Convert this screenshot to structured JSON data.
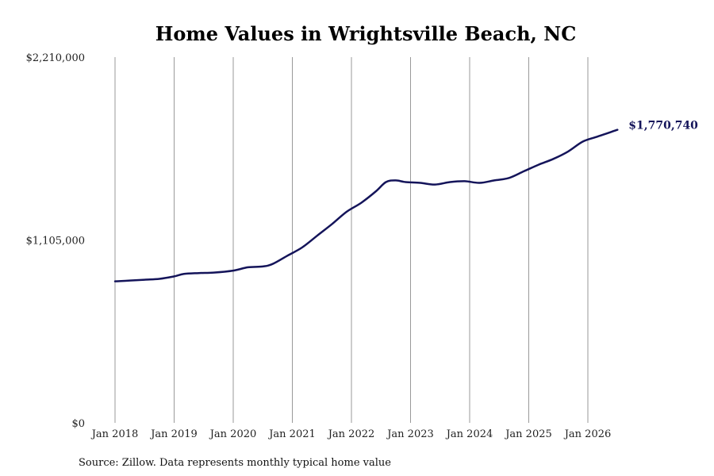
{
  "chart_data": {
    "type": "line",
    "title": "Home Values in Wrightsville Beach, NC",
    "source": "Source: Zillow. Data represents monthly typical home value",
    "x_start": "2018-01",
    "x_end": "2026-07",
    "xticks": [
      "Jan 2018",
      "Jan 2019",
      "Jan 2020",
      "Jan 2021",
      "Jan 2022",
      "Jan 2023",
      "Jan 2024",
      "Jan 2025",
      "Jan 2026"
    ],
    "yticks": [
      "$0",
      "$1,105,000",
      "$2,210,000"
    ],
    "ylim": [
      0,
      2210000
    ],
    "grid": "vertical",
    "line_color": "#14145a",
    "end_label": "$1,770,740",
    "series": [
      {
        "points": [
          [
            "2018-01",
            855000
          ],
          [
            "2018-04",
            860000
          ],
          [
            "2018-07",
            865000
          ],
          [
            "2018-10",
            870000
          ],
          [
            "2019-01",
            885000
          ],
          [
            "2019-03",
            900000
          ],
          [
            "2019-06",
            905000
          ],
          [
            "2019-09",
            908000
          ],
          [
            "2020-01",
            920000
          ],
          [
            "2020-04",
            940000
          ],
          [
            "2020-07",
            945000
          ],
          [
            "2020-09",
            960000
          ],
          [
            "2020-12",
            1010000
          ],
          [
            "2021-03",
            1060000
          ],
          [
            "2021-06",
            1130000
          ],
          [
            "2021-09",
            1200000
          ],
          [
            "2021-12",
            1275000
          ],
          [
            "2022-03",
            1330000
          ],
          [
            "2022-06",
            1400000
          ],
          [
            "2022-08",
            1455000
          ],
          [
            "2022-10",
            1465000
          ],
          [
            "2022-12",
            1455000
          ],
          [
            "2023-03",
            1450000
          ],
          [
            "2023-06",
            1440000
          ],
          [
            "2023-09",
            1455000
          ],
          [
            "2023-12",
            1460000
          ],
          [
            "2024-03",
            1450000
          ],
          [
            "2024-06",
            1465000
          ],
          [
            "2024-09",
            1480000
          ],
          [
            "2024-12",
            1520000
          ],
          [
            "2025-03",
            1560000
          ],
          [
            "2025-06",
            1595000
          ],
          [
            "2025-09",
            1640000
          ],
          [
            "2025-12",
            1700000
          ],
          [
            "2026-03",
            1730000
          ],
          [
            "2026-07",
            1770740
          ]
        ]
      }
    ]
  }
}
